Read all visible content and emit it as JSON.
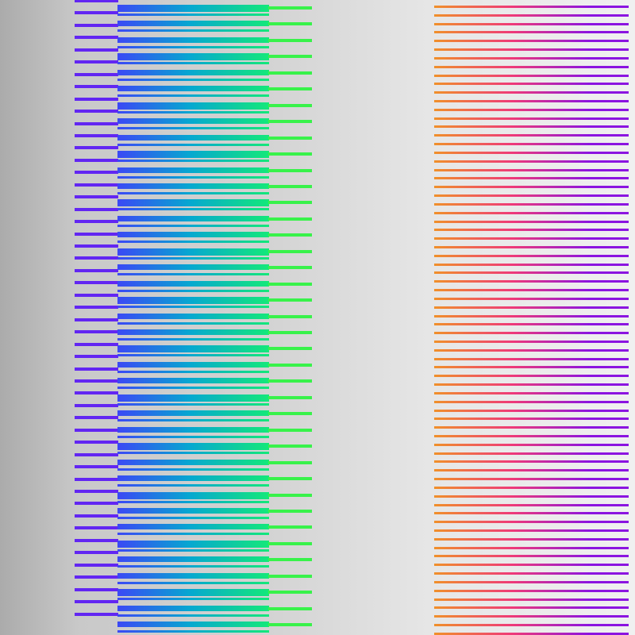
{
  "colors": {
    "background_left": "#ababab",
    "background_mid": "#d3d3d3",
    "background_right": "#f0f0f0",
    "purple": "#6226f2",
    "blue": "#3b48f5",
    "cyan": "#06a8d0",
    "green": "#14e87a",
    "lime": "#38f24a",
    "orange": "#f0902a",
    "pink": "#ef3a78",
    "violet": "#8b14e0"
  },
  "stripe_groups": [
    {
      "name": "purple-stripes",
      "color": "purple",
      "count": 51
    },
    {
      "name": "blue-green-gradient-stripes",
      "colors": [
        "blue",
        "cyan",
        "green"
      ],
      "count": 39
    },
    {
      "name": "lime-stripes",
      "color": "lime",
      "count": 39
    },
    {
      "name": "orange-pink-violet-gradient-stripes",
      "colors": [
        "orange",
        "pink",
        "violet"
      ],
      "count": 74
    }
  ]
}
